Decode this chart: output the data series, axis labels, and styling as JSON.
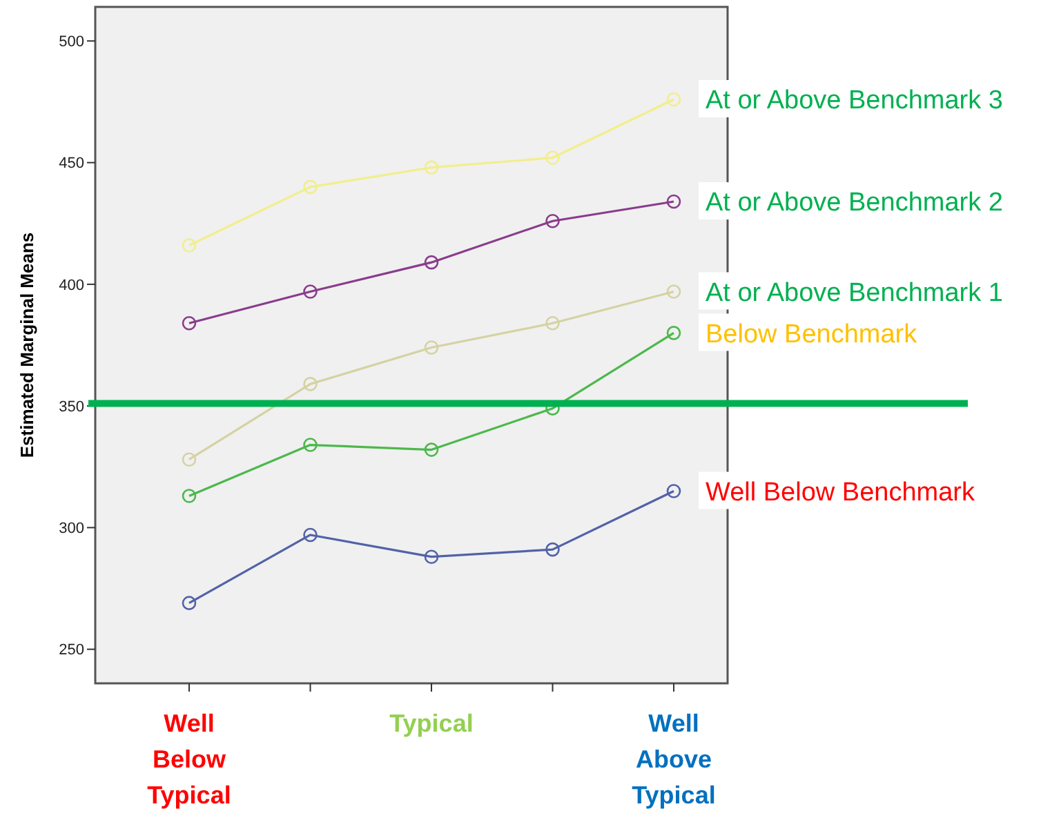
{
  "chart_data": {
    "type": "line",
    "ylabel": "Estimated Marginal Means",
    "categories": [
      "Well Below Typical",
      null,
      "Typical",
      null,
      "Well Above Typical"
    ],
    "series": [
      {
        "name": "At or Above Benchmark 3",
        "color": "#f2ee8c",
        "values": [
          416,
          440,
          448,
          452,
          476
        ]
      },
      {
        "name": "At or Above Benchmark 2",
        "color": "#8a3c8c",
        "values": [
          384,
          397,
          409,
          426,
          434
        ]
      },
      {
        "name": "At or Above Benchmark 1",
        "color": "#d5d2a3",
        "values": [
          328,
          359,
          374,
          384,
          397
        ]
      },
      {
        "name": "Below Benchmark",
        "color": "#4cb84c",
        "values": [
          313,
          334,
          332,
          349,
          380
        ]
      },
      {
        "name": "Well Below Benchmark",
        "color": "#5262a8",
        "values": [
          269,
          297,
          288,
          291,
          315
        ]
      }
    ],
    "ylim": [
      236,
      514
    ],
    "yticks": [
      250,
      300,
      350,
      400,
      450,
      500
    ],
    "ref_lines": [
      {
        "axis": "y",
        "value": 351,
        "color": "#00b050"
      }
    ],
    "marker": "circle",
    "grid": false
  }
}
